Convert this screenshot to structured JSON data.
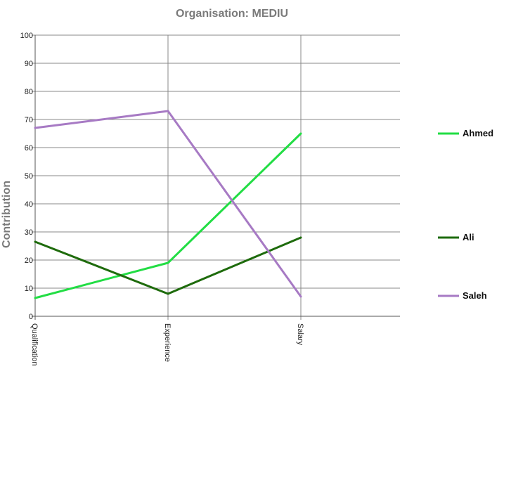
{
  "chart_data": {
    "type": "line",
    "title": "Organisation: MEDIU",
    "xlabel": "",
    "ylabel": "Contribution",
    "categories": [
      "Qualification",
      "Experience",
      "Salary"
    ],
    "ylim": [
      0,
      100
    ],
    "yticks": [
      0,
      10,
      20,
      30,
      40,
      50,
      60,
      70,
      80,
      90,
      100
    ],
    "grid": true,
    "legend_position": "right",
    "series": [
      {
        "name": "Ahmed",
        "values": [
          6.5,
          19,
          65
        ],
        "color": "#22dd44"
      },
      {
        "name": "Ali",
        "values": [
          26.5,
          8,
          28
        ],
        "color": "#1e6b0c"
      },
      {
        "name": "Saleh",
        "values": [
          67,
          73,
          7
        ],
        "color": "#a77ac4"
      }
    ]
  }
}
